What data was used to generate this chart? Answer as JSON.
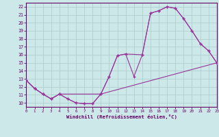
{
  "xlabel": "Windchill (Refroidissement éolien,°C)",
  "xlim": [
    0,
    23
  ],
  "ylim": [
    9.5,
    22.5
  ],
  "yticks": [
    10,
    11,
    12,
    13,
    14,
    15,
    16,
    17,
    18,
    19,
    20,
    21,
    22
  ],
  "xticks": [
    0,
    1,
    2,
    3,
    4,
    5,
    6,
    7,
    8,
    9,
    10,
    11,
    12,
    13,
    14,
    15,
    16,
    17,
    18,
    19,
    20,
    21,
    22,
    23
  ],
  "bg_color": "#cce8e8",
  "grid_color": "#aacccc",
  "line_color": "#993399",
  "line1_x": [
    0,
    1,
    2,
    3,
    4,
    5,
    6,
    7,
    8,
    9,
    10,
    11,
    12,
    13,
    14,
    15,
    16,
    17,
    18,
    19,
    20,
    21,
    22,
    23
  ],
  "line1_y": [
    12.8,
    11.8,
    11.1,
    10.5,
    11.1,
    10.5,
    10.0,
    9.9,
    9.9,
    11.1,
    13.3,
    15.9,
    16.1,
    13.3,
    16.0,
    21.2,
    21.5,
    22.0,
    21.8,
    20.5,
    19.0,
    17.4,
    16.5,
    15.0
  ],
  "line2_x": [
    0,
    1,
    2,
    3,
    4,
    9,
    10,
    11,
    12,
    14,
    15,
    16,
    17,
    18,
    19,
    20,
    21,
    22,
    23
  ],
  "line2_y": [
    12.8,
    11.8,
    11.1,
    10.5,
    11.1,
    11.1,
    13.3,
    15.9,
    16.1,
    16.0,
    21.2,
    21.5,
    22.0,
    21.8,
    20.5,
    19.0,
    17.4,
    16.5,
    15.0
  ],
  "line3_x": [
    0,
    1,
    2,
    3,
    4,
    5,
    6,
    7,
    8,
    9,
    23
  ],
  "line3_y": [
    12.8,
    11.8,
    11.1,
    10.5,
    11.1,
    10.5,
    10.0,
    9.9,
    9.9,
    11.1,
    15.0
  ]
}
